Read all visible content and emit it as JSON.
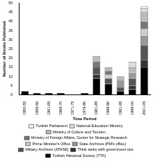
{
  "chart_data": {
    "type": "bar",
    "stacked": true,
    "grid": false,
    "legend": "bottom",
    "x_label": "Time Period",
    "y_label": "Number of Books Published",
    "categories": [
      "1950-55",
      "1956-60",
      "1961-65",
      "1966-70",
      "1971-75",
      "1976-80",
      "1981-85",
      "1986-90",
      "1991-95",
      "1996-00",
      "2001-05"
    ],
    "ylim": [
      0,
      50
    ],
    "yticks": [
      0,
      5,
      10,
      15,
      20,
      25,
      30,
      35,
      40,
      45,
      50
    ],
    "series": [
      {
        "name": "Turkish Historical Society (TTK)",
        "color": "#000000",
        "values": [
          2,
          1,
          1,
          1,
          0,
          1,
          9,
          6,
          2,
          3,
          15
        ]
      },
      {
        "name": "Think tanks with government ties",
        "color": "#333333",
        "values": [
          0,
          0,
          0,
          0,
          0,
          0,
          2,
          0,
          0,
          2,
          4
        ]
      },
      {
        "name": "Military Archives (ATASE)",
        "color": "#555555",
        "values": [
          0,
          0,
          0,
          0,
          0,
          0,
          4,
          3,
          2,
          4,
          8
        ]
      },
      {
        "name": "State Archives (PM's office)",
        "color": "#999999",
        "values": [
          0,
          0,
          0,
          0,
          0,
          0,
          0,
          0,
          4,
          3,
          5
        ]
      },
      {
        "name": "Prime Minister's Office",
        "color": "#cccccc",
        "values": [
          0,
          0,
          0,
          0,
          0,
          0,
          0,
          2,
          0,
          0,
          4
        ]
      },
      {
        "name": "Ministry of Foreign Affairs, Center for Strategic Research",
        "color": "#777777",
        "values": [
          0,
          0,
          0,
          0,
          0,
          0,
          3,
          2,
          0,
          0,
          4
        ]
      },
      {
        "name": "Ministry of Culture and Tourism",
        "color": "#bbbbbb",
        "values": [
          0,
          0,
          0,
          0,
          0,
          0,
          3,
          2,
          2,
          3,
          5
        ]
      },
      {
        "name": "National Education Ministry",
        "color": "#dddddd",
        "values": [
          0,
          0,
          0,
          0,
          0,
          0,
          0,
          0,
          0,
          3,
          2
        ]
      },
      {
        "name": "Turkish Parliament",
        "color": "#f2f2f2",
        "values": [
          0,
          0,
          0,
          0,
          0,
          0,
          0,
          0,
          0,
          0,
          1
        ]
      }
    ]
  }
}
